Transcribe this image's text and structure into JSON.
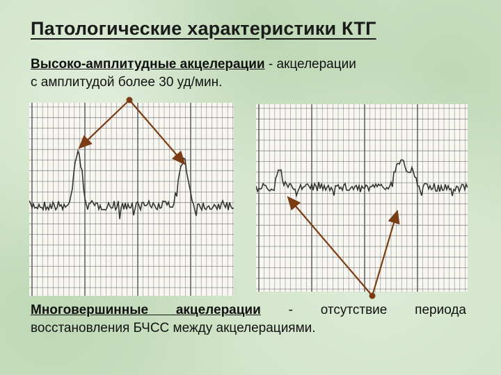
{
  "slide": {
    "title": "Патологические характеристики КТГ",
    "subtitle": {
      "term": "Высоко-амплитудные акцелерации",
      "rest_line1": " - акцелерации",
      "rest_line2": "с амплитудой более 30 уд/мин."
    },
    "bottom": {
      "term": "Многовершинные акцелерации",
      "rest": " - отсутствие периода восстановления БЧСС между акцелерациями."
    }
  },
  "colors": {
    "background": "#cfe3c6",
    "arrow": "#7a3c12",
    "grid": "#555555",
    "trace": "#333333"
  }
}
